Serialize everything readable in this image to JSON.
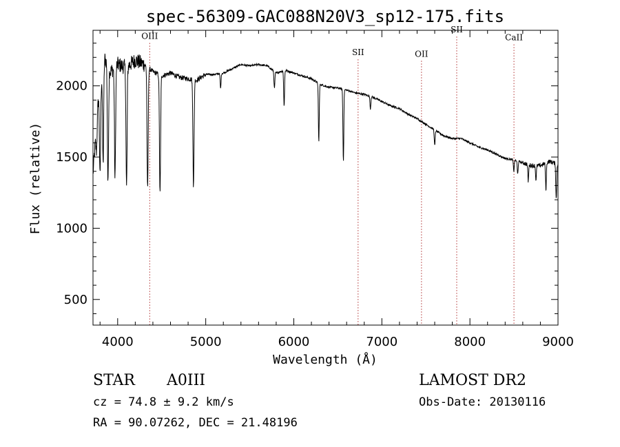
{
  "chart_data": {
    "type": "line",
    "title": "spec-56309-GAC088N20V3_sp12-175.fits",
    "xlabel": "Wavelength (Å)",
    "ylabel": "Flux (relative)",
    "xlim": [
      3720,
      9000
    ],
    "ylim": [
      320,
      2390
    ],
    "x_ticks": [
      4000,
      5000,
      6000,
      7000,
      8000,
      9000
    ],
    "x_tick_labels": [
      "4000",
      "5000",
      "6000",
      "7000",
      "8000",
      "9000"
    ],
    "y_ticks": [
      500,
      1000,
      1500,
      2000
    ],
    "y_tick_labels": [
      "500",
      "1000",
      "1500",
      "2000"
    ],
    "grid": false,
    "line_color": "#000000",
    "marker_color": "#b03030",
    "continuum": [
      [
        3720,
        1380
      ],
      [
        3780,
        1900
      ],
      [
        3850,
        2200
      ],
      [
        3920,
        2100
      ],
      [
        4000,
        2150
      ],
      [
        4100,
        2130
      ],
      [
        4200,
        2180
      ],
      [
        4300,
        2150
      ],
      [
        4400,
        2100
      ],
      [
        4500,
        2070
      ],
      [
        4600,
        2090
      ],
      [
        4700,
        2060
      ],
      [
        4800,
        2050
      ],
      [
        4900,
        2040
      ],
      [
        5000,
        2080
      ],
      [
        5100,
        2080
      ],
      [
        5200,
        2090
      ],
      [
        5300,
        2120
      ],
      [
        5400,
        2150
      ],
      [
        5500,
        2140
      ],
      [
        5600,
        2150
      ],
      [
        5700,
        2140
      ],
      [
        5800,
        2090
      ],
      [
        5900,
        2110
      ],
      [
        6000,
        2090
      ],
      [
        6100,
        2070
      ],
      [
        6200,
        2050
      ],
      [
        6300,
        2010
      ],
      [
        6400,
        1990
      ],
      [
        6500,
        1985
      ],
      [
        6600,
        1970
      ],
      [
        6700,
        1950
      ],
      [
        6800,
        1940
      ],
      [
        6900,
        1920
      ],
      [
        7000,
        1890
      ],
      [
        7100,
        1860
      ],
      [
        7200,
        1840
      ],
      [
        7300,
        1800
      ],
      [
        7400,
        1770
      ],
      [
        7500,
        1730
      ],
      [
        7600,
        1690
      ],
      [
        7700,
        1650
      ],
      [
        7800,
        1630
      ],
      [
        7900,
        1630
      ],
      [
        8000,
        1600
      ],
      [
        8100,
        1570
      ],
      [
        8200,
        1550
      ],
      [
        8300,
        1520
      ],
      [
        8400,
        1490
      ],
      [
        8500,
        1480
      ],
      [
        8600,
        1460
      ],
      [
        8700,
        1440
      ],
      [
        8800,
        1440
      ],
      [
        8900,
        1470
      ],
      [
        9000,
        1450
      ]
    ],
    "absorption_lines": [
      [
        3760,
        1550
      ],
      [
        3800,
        1350
      ],
      [
        3835,
        1450
      ],
      [
        3890,
        1300
      ],
      [
        3970,
        1340
      ],
      [
        4101,
        1280
      ],
      [
        4340,
        1270
      ],
      [
        4481,
        1240
      ],
      [
        4861,
        1290
      ],
      [
        5169,
        1980
      ],
      [
        5780,
        1980
      ],
      [
        5890,
        1860
      ],
      [
        6284,
        1610
      ],
      [
        6563,
        1470
      ],
      [
        6870,
        1840
      ],
      [
        7600,
        1580
      ],
      [
        8498,
        1400
      ],
      [
        8542,
        1380
      ],
      [
        8662,
        1330
      ],
      [
        8750,
        1340
      ],
      [
        8863,
        1270
      ],
      [
        8980,
        1200
      ]
    ],
    "line_markers": [
      {
        "label": "OIII",
        "x": 4364,
        "label_flux": 2330
      },
      {
        "label": "SII",
        "x": 6730,
        "label_flux": 2215
      },
      {
        "label": "OII",
        "x": 7450,
        "label_flux": 2205
      },
      {
        "label": "SII",
        "x": 7850,
        "label_flux": 2375
      },
      {
        "label": "CaII",
        "x": 8500,
        "label_flux": 2320
      }
    ]
  },
  "footer": {
    "object_type": "STAR",
    "subclass": "A0III",
    "survey": "LAMOST DR2",
    "redshift": "cz = 74.8 ± 9.2 km/s",
    "obs_date": "Obs-Date: 20130116",
    "coords": "RA =  90.07262, DEC =  21.48196"
  }
}
